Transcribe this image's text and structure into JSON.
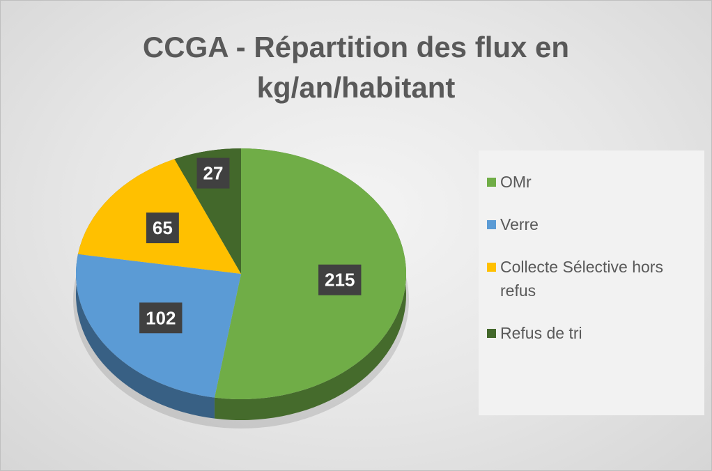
{
  "chart_data": {
    "type": "pie3d",
    "title": "CCGA - Répartition des flux en kg/an/habitant",
    "categories": [
      "OMr",
      "Verre",
      "Collecte Sélective hors refus",
      "Refus de tri"
    ],
    "values": [
      215,
      102,
      65,
      27
    ],
    "colors": [
      "#70ad47",
      "#5b9bd5",
      "#ffc000",
      "#43682b"
    ],
    "legend": "right"
  }
}
